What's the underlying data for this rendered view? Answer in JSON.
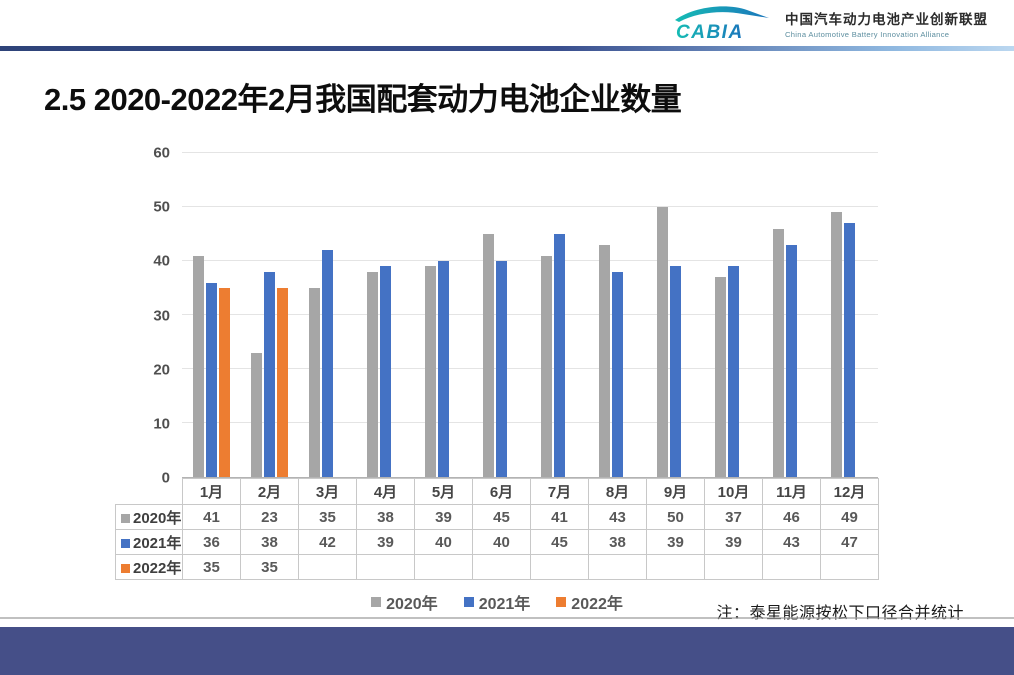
{
  "header": {
    "logo_text": "CABIA",
    "org_cn": "中国汽车动力电池产业创新联盟",
    "org_en": "China Automotive Battery Innovation Alliance"
  },
  "title": "2.5 2020-2022年2月我国配套动力电池企业数量",
  "note": "注：泰星能源按松下口径合并统计",
  "colors": {
    "footer_band": "#454F88",
    "header_rule_left": "#2E4379",
    "header_rule_mid": "#3A4F8E",
    "header_rule_right": "#BBD7F0",
    "gridline": "#E4E4E4",
    "axis_line": "#B3B3B3",
    "table_border": "#C8C8C8",
    "logo_teal": "#16BCB4",
    "logo_blue": "#1B75BC"
  },
  "chart_data": {
    "type": "bar",
    "title": "2.5 2020-2022年2月我国配套动力电池企业数量",
    "xlabel": "",
    "ylabel": "",
    "ylim": [
      0,
      60
    ],
    "yticks": [
      0,
      10,
      20,
      30,
      40,
      50,
      60
    ],
    "grid": true,
    "legend_position": "bottom",
    "show_data_table": true,
    "categories": [
      "1月",
      "2月",
      "3月",
      "4月",
      "5月",
      "6月",
      "7月",
      "8月",
      "9月",
      "10月",
      "11月",
      "12月"
    ],
    "series": [
      {
        "name": "2020年",
        "color": "#A6A6A6",
        "values": [
          41,
          23,
          35,
          38,
          39,
          45,
          41,
          43,
          50,
          37,
          46,
          49
        ]
      },
      {
        "name": "2021年",
        "color": "#4472C4",
        "values": [
          36,
          38,
          42,
          39,
          40,
          40,
          45,
          38,
          39,
          39,
          43,
          47
        ]
      },
      {
        "name": "2022年",
        "color": "#ED7D31",
        "values": [
          35,
          35,
          null,
          null,
          null,
          null,
          null,
          null,
          null,
          null,
          null,
          null
        ]
      }
    ]
  }
}
